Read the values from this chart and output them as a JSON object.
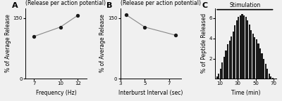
{
  "panelA": {
    "title": "Normalized release\n(Release per action potential)",
    "xlabel": "Frequency (Hz)",
    "ylabel": "% of Average Release",
    "x": [
      7,
      10,
      12
    ],
    "y": [
      105,
      128,
      157
    ],
    "xlim": [
      6,
      13
    ],
    "ylim": [
      0,
      175
    ],
    "xticks": [
      7,
      10,
      12
    ],
    "yticks": [
      0,
      150
    ],
    "label": "A"
  },
  "panelB": {
    "title": "Normalized release\n(Release per action potential)",
    "xlabel": "Interburst Interval (sec)",
    "ylabel": "% of Average Release",
    "x": [
      3.5,
      5,
      7.5
    ],
    "y": [
      158,
      128,
      108
    ],
    "xlim": [
      3,
      8
    ],
    "ylim": [
      0,
      175
    ],
    "xticks": [
      3,
      5,
      7
    ],
    "yticks": [
      0,
      150
    ],
    "label": "B"
  },
  "panelC": {
    "title": "Stimulation",
    "xlabel": "Time (min)",
    "ylabel": "% of Peptide Released",
    "bar_x": [
      5,
      7,
      9,
      11,
      13,
      15,
      17,
      19,
      21,
      23,
      25,
      27,
      29,
      31,
      33,
      35,
      37,
      39,
      41,
      43,
      45,
      47,
      49,
      51,
      53,
      55,
      57,
      59,
      61,
      63,
      65,
      67,
      69,
      71
    ],
    "bar_heights": [
      0.05,
      0.2,
      0.5,
      1.0,
      1.6,
      2.2,
      2.8,
      3.4,
      3.8,
      4.2,
      4.7,
      5.3,
      5.8,
      6.1,
      6.3,
      6.4,
      6.3,
      6.1,
      5.8,
      5.4,
      4.8,
      4.5,
      4.1,
      3.9,
      3.5,
      3.0,
      2.5,
      2.0,
      1.5,
      1.0,
      0.5,
      0.2,
      0.08,
      0.02
    ],
    "xlim": [
      5,
      73
    ],
    "ylim": [
      0,
      7
    ],
    "xticks": [
      10,
      30,
      50,
      70
    ],
    "yticks": [
      2,
      4,
      6
    ],
    "stim_x_start": 5,
    "stim_x_end": 71,
    "stim_y": 6.85,
    "bar_color": "#1a1a1a",
    "bar_width": 1.7,
    "label": "C"
  },
  "line_color": "#888888",
  "marker_color": "#1a1a1a",
  "bg_color": "#f0f0f0",
  "title_fontsize": 5.5,
  "label_fontsize": 5.5,
  "tick_fontsize": 5.0,
  "panel_label_fontsize": 8
}
